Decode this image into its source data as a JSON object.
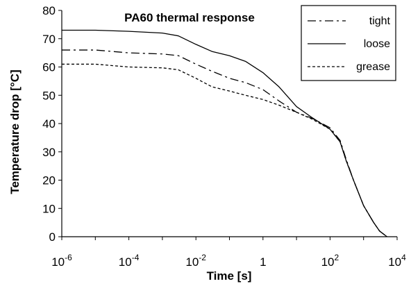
{
  "chart_data": {
    "type": "line",
    "title": "PA60 thermal response",
    "xlabel": "Time [s]",
    "ylabel": "Temperature drop [°C]",
    "x_scale": "log",
    "xlim": [
      1e-06,
      10000
    ],
    "ylim": [
      0,
      80
    ],
    "x_ticks": [
      {
        "base": "10",
        "exp": "-6"
      },
      {
        "base": "10",
        "exp": "-4"
      },
      {
        "base": "10",
        "exp": "-2"
      },
      {
        "base": "1",
        "exp": ""
      },
      {
        "base": "10",
        "exp": "2"
      },
      {
        "base": "10",
        "exp": "4"
      }
    ],
    "y_ticks": [
      "0",
      "10",
      "20",
      "30",
      "40",
      "50",
      "60",
      "70",
      "80"
    ],
    "grid": false,
    "legend_position": "top-right",
    "series": [
      {
        "name": "tight",
        "style": "dash-dot",
        "x": [
          1e-06,
          1e-05,
          0.0001,
          0.001,
          0.003,
          0.01,
          0.03,
          0.1,
          0.3,
          1,
          3,
          10,
          30,
          100,
          200,
          300,
          500,
          1000,
          2000,
          3000,
          5000
        ],
        "y": [
          66,
          66,
          65,
          64.6,
          64,
          61,
          58.5,
          56,
          54.5,
          52,
          48,
          44,
          41.8,
          38.5,
          34,
          27.5,
          20,
          11,
          5,
          2,
          0
        ]
      },
      {
        "name": "loose",
        "style": "solid",
        "x": [
          1e-06,
          1e-05,
          0.0001,
          0.001,
          0.003,
          0.01,
          0.03,
          0.1,
          0.3,
          1,
          3,
          10,
          30,
          100,
          200,
          300,
          500,
          1000,
          2000,
          3000,
          5000
        ],
        "y": [
          73,
          73,
          72.6,
          72,
          71,
          68,
          65.5,
          64,
          62,
          58,
          53,
          46,
          42,
          38,
          33.5,
          27,
          20,
          11,
          5,
          2,
          0
        ]
      },
      {
        "name": "grease",
        "style": "dashed",
        "x": [
          1e-06,
          1e-05,
          0.0001,
          0.001,
          0.003,
          0.01,
          0.03,
          0.1,
          0.3,
          1,
          3,
          10,
          30,
          100,
          200,
          300,
          500,
          1000,
          2000,
          3000,
          5000
        ],
        "y": [
          61,
          61,
          60,
          59.7,
          59,
          56,
          53,
          51.5,
          50,
          48.5,
          46.5,
          44,
          41.5,
          38,
          33.5,
          27,
          20,
          11,
          5,
          2,
          0
        ]
      }
    ]
  }
}
